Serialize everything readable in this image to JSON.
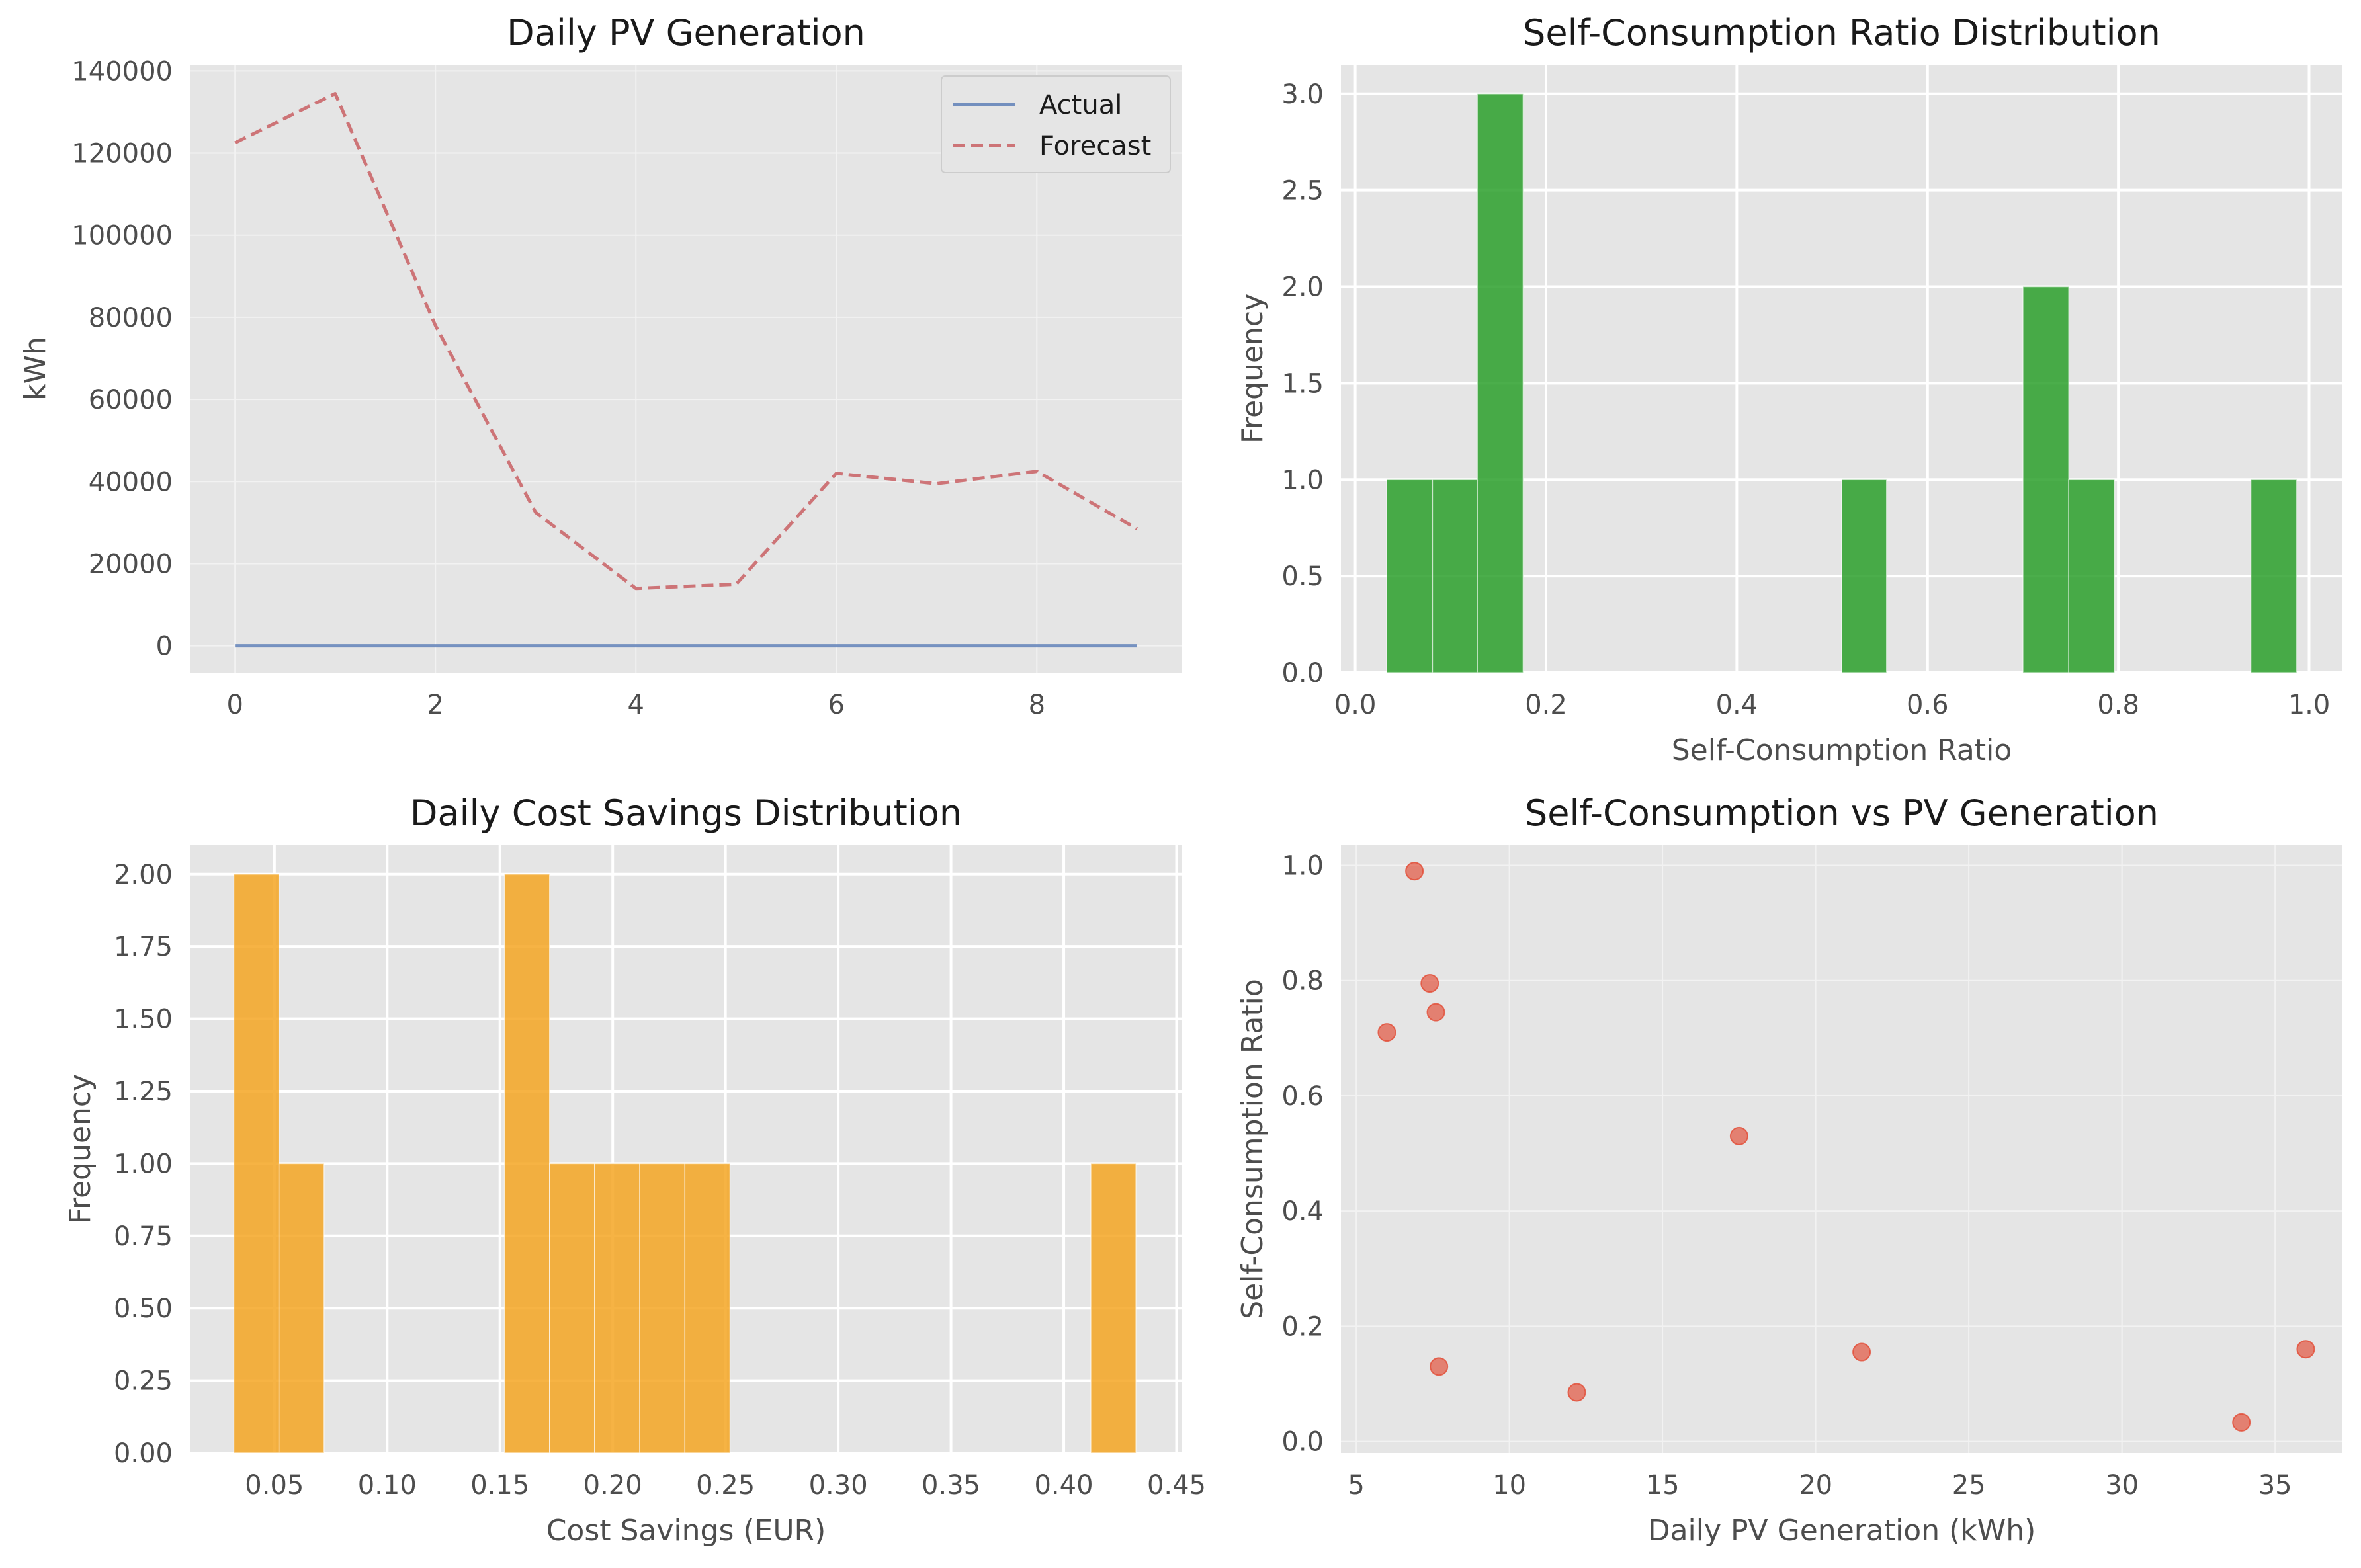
{
  "chart_data": [
    {
      "type": "line",
      "title": "Daily PV Generation",
      "xlabel": "",
      "ylabel": "kWh",
      "xlim": [
        -0.45,
        9.45
      ],
      "ylim": [
        -6500,
        141500
      ],
      "xticks": [
        0,
        2,
        4,
        6,
        8
      ],
      "yticks": [
        0,
        20000,
        40000,
        60000,
        80000,
        100000,
        120000,
        140000
      ],
      "grid": true,
      "legend": "top-right",
      "x": [
        0,
        1,
        2,
        3,
        4,
        5,
        6,
        7,
        8,
        9
      ],
      "series": [
        {
          "name": "Actual",
          "values": [
            0,
            0,
            0,
            0,
            0,
            0,
            0,
            0,
            0,
            0
          ],
          "color": "#4c72b0",
          "style": "solid"
        },
        {
          "name": "Forecast",
          "values": [
            122500,
            134500,
            78000,
            32500,
            14000,
            15000,
            42000,
            39500,
            42500,
            28500
          ],
          "color": "#c44e52",
          "style": "dashed"
        }
      ]
    },
    {
      "type": "bar",
      "title": "Self-Consumption Ratio Distribution",
      "xlabel": "Self-Consumption Ratio",
      "ylabel": "Frequency",
      "xlim": [
        -0.015,
        1.035
      ],
      "ylim": [
        0,
        3.15
      ],
      "xticks": [
        0.0,
        0.2,
        0.4,
        0.6,
        0.8,
        1.0
      ],
      "yticks": [
        0.0,
        0.5,
        1.0,
        1.5,
        2.0,
        2.5,
        3.0
      ],
      "grid": true,
      "color": "#2ca02c",
      "bins": [
        {
          "x0": 0.033,
          "x1": 0.081,
          "count": 1
        },
        {
          "x0": 0.081,
          "x1": 0.128,
          "count": 1
        },
        {
          "x0": 0.128,
          "x1": 0.176,
          "count": 3
        },
        {
          "x0": 0.51,
          "x1": 0.557,
          "count": 1
        },
        {
          "x0": 0.7,
          "x1": 0.748,
          "count": 2
        },
        {
          "x0": 0.748,
          "x1": 0.796,
          "count": 1
        },
        {
          "x0": 0.939,
          "x1": 0.987,
          "count": 1
        }
      ]
    },
    {
      "type": "bar",
      "title": "Daily Cost Savings Distribution",
      "xlabel": "Cost Savings (EUR)",
      "ylabel": "Frequency",
      "xlim": [
        0.0125,
        0.4525
      ],
      "ylim": [
        0,
        2.1
      ],
      "xticks": [
        0.05,
        0.1,
        0.15,
        0.2,
        0.25,
        0.3,
        0.35,
        0.4,
        0.45
      ],
      "yticks": [
        0.0,
        0.25,
        0.5,
        0.75,
        1.0,
        1.25,
        1.5,
        1.75,
        2.0
      ],
      "grid": true,
      "color": "#f5a623",
      "bins": [
        {
          "x0": 0.032,
          "x1": 0.052,
          "count": 2
        },
        {
          "x0": 0.052,
          "x1": 0.072,
          "count": 1
        },
        {
          "x0": 0.152,
          "x1": 0.172,
          "count": 2
        },
        {
          "x0": 0.172,
          "x1": 0.192,
          "count": 1
        },
        {
          "x0": 0.192,
          "x1": 0.212,
          "count": 1
        },
        {
          "x0": 0.212,
          "x1": 0.232,
          "count": 1
        },
        {
          "x0": 0.232,
          "x1": 0.252,
          "count": 1
        },
        {
          "x0": 0.412,
          "x1": 0.432,
          "count": 1
        }
      ]
    },
    {
      "type": "scatter",
      "title": "Self-Consumption vs PV Generation",
      "xlabel": "Daily PV Generation (kWh)",
      "ylabel": "Self-Consumption Ratio",
      "xlim": [
        4.5,
        37.2
      ],
      "ylim": [
        -0.02,
        1.035
      ],
      "xticks": [
        5,
        10,
        15,
        20,
        25,
        30,
        35
      ],
      "yticks": [
        0.0,
        0.2,
        0.4,
        0.6,
        0.8,
        1.0
      ],
      "grid": true,
      "color": "#e24a33",
      "points": [
        {
          "x": 6.0,
          "y": 0.71
        },
        {
          "x": 6.9,
          "y": 0.99
        },
        {
          "x": 7.4,
          "y": 0.795
        },
        {
          "x": 7.6,
          "y": 0.745
        },
        {
          "x": 7.7,
          "y": 0.13
        },
        {
          "x": 12.2,
          "y": 0.085
        },
        {
          "x": 17.5,
          "y": 0.53
        },
        {
          "x": 21.5,
          "y": 0.155
        },
        {
          "x": 33.9,
          "y": 0.033
        },
        {
          "x": 36.0,
          "y": 0.16
        }
      ]
    }
  ]
}
